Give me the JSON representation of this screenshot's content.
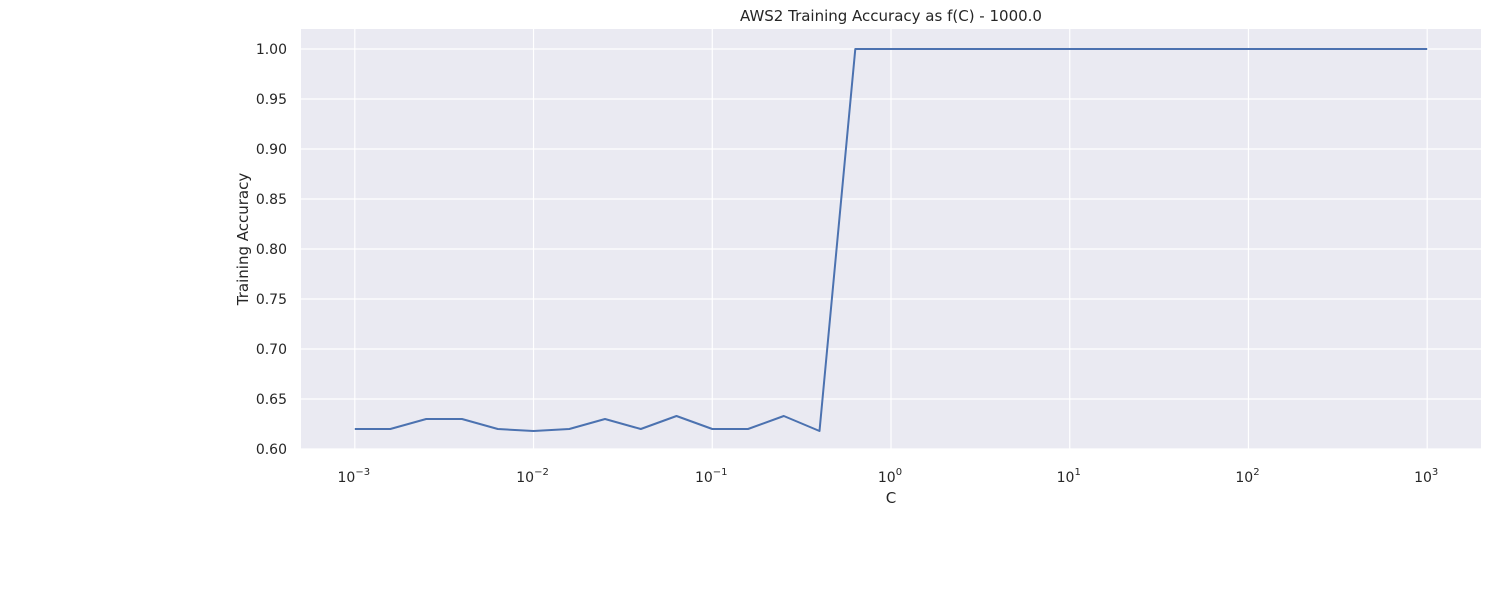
{
  "chart_data": {
    "type": "line",
    "title": "AWS2 Training Accuracy as f(C) - 1000.0",
    "xlabel": "C",
    "ylabel": "Training Accuracy",
    "xscale": "log",
    "xlim": [
      0.0005,
      2000
    ],
    "ylim": [
      0.6,
      1.02
    ],
    "x_ticks": [
      {
        "base": "10",
        "exp": "−3",
        "value": 0.001
      },
      {
        "base": "10",
        "exp": "−2",
        "value": 0.01
      },
      {
        "base": "10",
        "exp": "−1",
        "value": 0.1
      },
      {
        "base": "10",
        "exp": "0",
        "value": 1
      },
      {
        "base": "10",
        "exp": "1",
        "value": 10
      },
      {
        "base": "10",
        "exp": "2",
        "value": 100
      },
      {
        "base": "10",
        "exp": "3",
        "value": 1000
      }
    ],
    "y_ticks": [
      "0.60",
      "0.65",
      "0.70",
      "0.75",
      "0.80",
      "0.85",
      "0.90",
      "0.95",
      "1.00"
    ],
    "grid": true,
    "background_color": "#eaeaf2",
    "grid_color": "#ffffff",
    "line_color": "#4c72b0",
    "series": [
      {
        "x": [
          0.001,
          0.00158,
          0.00251,
          0.00398,
          0.00631,
          0.01,
          0.01585,
          0.02512,
          0.03981,
          0.0631,
          0.1,
          0.15849,
          0.25119,
          0.39811,
          0.63096,
          1000
        ],
        "values": [
          0.62,
          0.62,
          0.63,
          0.63,
          0.62,
          0.618,
          0.62,
          0.63,
          0.62,
          0.633,
          0.62,
          0.62,
          0.633,
          0.618,
          1.0,
          1.0
        ]
      }
    ]
  }
}
